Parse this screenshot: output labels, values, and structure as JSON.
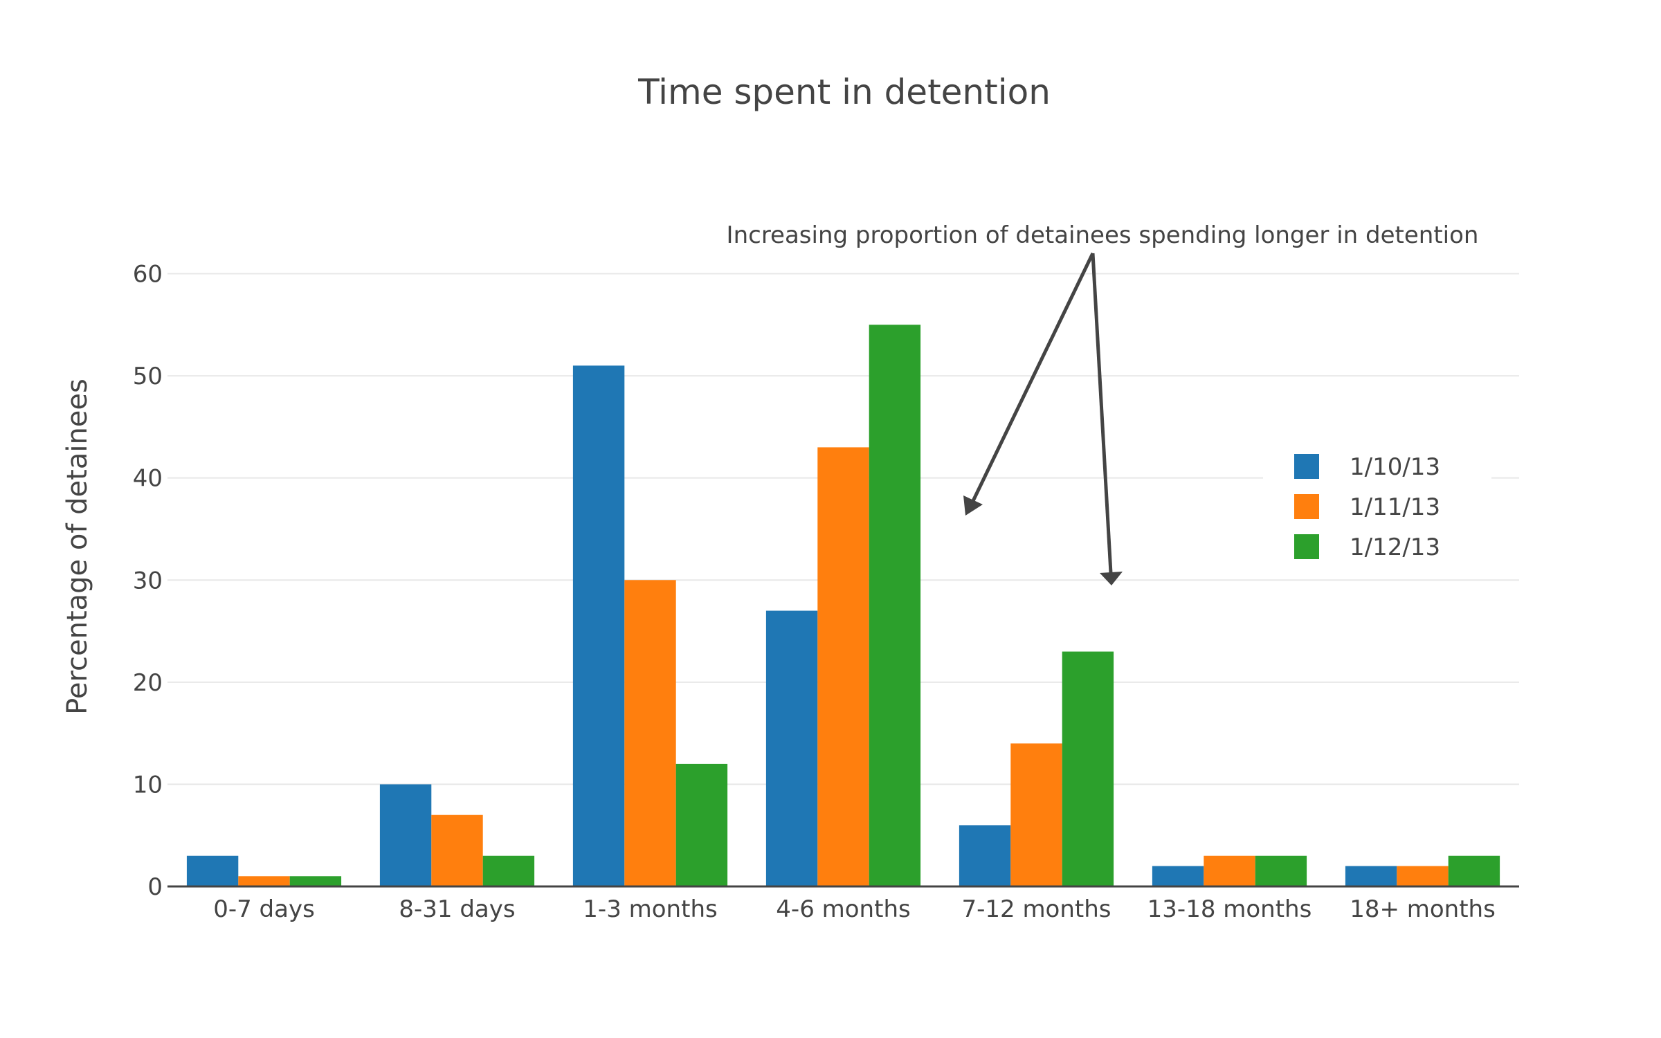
{
  "chart_data": {
    "type": "bar",
    "title": "Time spent in detention",
    "xlabel": "",
    "ylabel": "Percentage of detainees",
    "ylim": [
      0,
      62
    ],
    "yticks": [
      0,
      10,
      20,
      30,
      40,
      50,
      60
    ],
    "grid": true,
    "legend_position": "right",
    "categories": [
      "0-7 days",
      "8-31 days",
      "1-3 months",
      "4-6 months",
      "7-12 months",
      "13-18 months",
      "18+ months"
    ],
    "series": [
      {
        "name": "1/10/13",
        "color": "#1f77b4",
        "values": [
          3,
          10,
          51,
          27,
          6,
          2,
          2
        ]
      },
      {
        "name": "1/11/13",
        "color": "#ff7f0e",
        "values": [
          1,
          7,
          30,
          43,
          14,
          3,
          2
        ]
      },
      {
        "name": "1/12/13",
        "color": "#2ca02c",
        "values": [
          1,
          3,
          12,
          55,
          23,
          3,
          3
        ]
      }
    ],
    "annotation": {
      "text": "Increasing proportion of detainees spending longer in detention"
    }
  }
}
